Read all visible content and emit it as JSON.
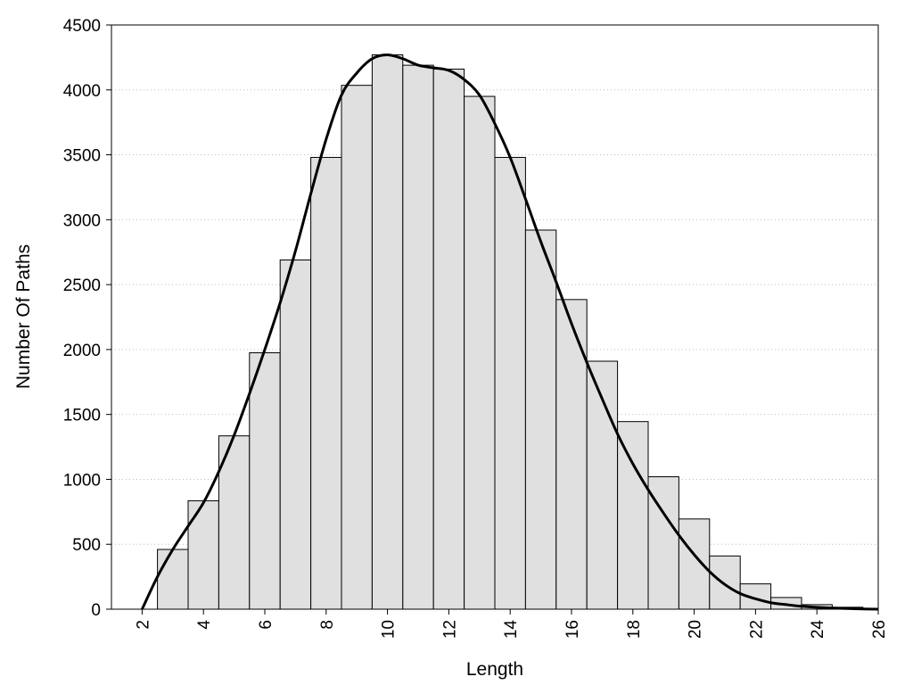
{
  "chart_data": {
    "type": "bar",
    "title": "",
    "xlabel": "Length",
    "ylabel": "Number Of Paths",
    "xlim": [
      1,
      26
    ],
    "ylim": [
      0,
      4500
    ],
    "x_ticks": [
      2,
      4,
      6,
      8,
      10,
      12,
      14,
      16,
      18,
      20,
      22,
      24,
      26
    ],
    "y_ticks": [
      0,
      500,
      1000,
      1500,
      2000,
      2500,
      3000,
      3500,
      4000,
      4500
    ],
    "grid": "horizontal dotted",
    "bars": [
      {
        "x": 3,
        "value": 460
      },
      {
        "x": 4,
        "value": 835
      },
      {
        "x": 5,
        "value": 1335
      },
      {
        "x": 6,
        "value": 1975
      },
      {
        "x": 7,
        "value": 2690
      },
      {
        "x": 8,
        "value": 3480
      },
      {
        "x": 9,
        "value": 4035
      },
      {
        "x": 10,
        "value": 4270
      },
      {
        "x": 11,
        "value": 4190
      },
      {
        "x": 12,
        "value": 4160
      },
      {
        "x": 13,
        "value": 3950
      },
      {
        "x": 14,
        "value": 3480
      },
      {
        "x": 15,
        "value": 2920
      },
      {
        "x": 16,
        "value": 2385
      },
      {
        "x": 17,
        "value": 1910
      },
      {
        "x": 18,
        "value": 1445
      },
      {
        "x": 19,
        "value": 1020
      },
      {
        "x": 20,
        "value": 695
      },
      {
        "x": 21,
        "value": 410
      },
      {
        "x": 22,
        "value": 195
      },
      {
        "x": 23,
        "value": 90
      },
      {
        "x": 24,
        "value": 35
      },
      {
        "x": 25,
        "value": 15
      }
    ],
    "curve": {
      "x": [
        2,
        2.5,
        3,
        3.5,
        4,
        4.5,
        5,
        5.5,
        6,
        6.5,
        7,
        7.5,
        8,
        8.5,
        9,
        9.5,
        10,
        10.5,
        11,
        11.5,
        12,
        12.5,
        13,
        13.5,
        14,
        14.5,
        15,
        15.5,
        16,
        16.5,
        17,
        17.5,
        18,
        18.5,
        19,
        19.5,
        20,
        20.5,
        21,
        21.5,
        22,
        22.5,
        23,
        23.5,
        24,
        24.5,
        25,
        25.5,
        26
      ],
      "y": [
        0,
        250,
        460,
        640,
        820,
        1060,
        1340,
        1660,
        2000,
        2360,
        2760,
        3200,
        3620,
        3960,
        4130,
        4240,
        4270,
        4240,
        4190,
        4170,
        4150,
        4080,
        3960,
        3740,
        3480,
        3160,
        2830,
        2520,
        2200,
        1900,
        1620,
        1350,
        1120,
        920,
        740,
        570,
        420,
        290,
        190,
        120,
        80,
        50,
        35,
        22,
        15,
        9,
        5,
        2,
        0
      ]
    }
  }
}
